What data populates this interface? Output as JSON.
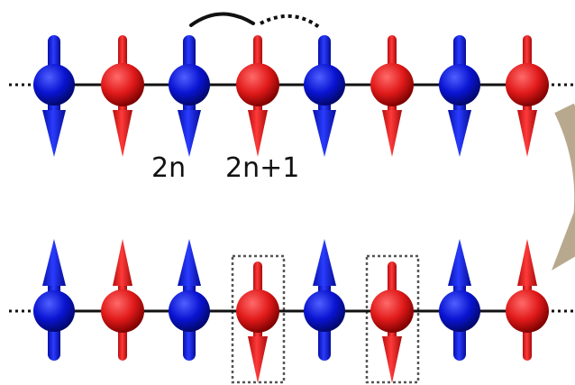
{
  "labels": {
    "site_a": "2n",
    "site_b": "2n+1"
  },
  "chains": [
    {
      "name": "top-chain",
      "spins": [
        "down",
        "down",
        "down",
        "down",
        "down",
        "down",
        "down",
        "down"
      ]
    },
    {
      "name": "bottom-chain",
      "spins": [
        "up",
        "up",
        "up",
        "down",
        "up",
        "down",
        "up",
        "up"
      ],
      "flipped_sites": [
        3,
        5
      ]
    }
  ],
  "colors": {
    "even_site": "#0a14d2",
    "odd_site": "#e11a1a",
    "bond": "#111111",
    "highlight_box": "#555555",
    "transition_arrow": "#b8a98e"
  },
  "icons": {
    "hopping": "hopping-arc-icon",
    "transition": "curved-transition-arrow-icon"
  }
}
